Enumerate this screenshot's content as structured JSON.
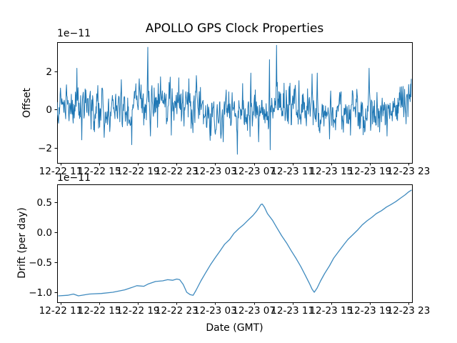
{
  "figure": {
    "title": "APOLLO GPS Clock Properties",
    "background": "#ffffff",
    "line_color": "#1f77b4",
    "axis_color": "#000000"
  },
  "chart_data": [
    {
      "type": "line",
      "name": "offset-vs-time",
      "title": "APOLLO GPS Clock Properties",
      "ylabel": "Offset",
      "y_offset_text": "1e−11",
      "y_unit_scale": "1e-11",
      "yticklabels": [
        "2",
        "0",
        "−2"
      ],
      "yticks": [
        2,
        0,
        -2
      ],
      "ylim": [
        -2.8,
        3.48
      ],
      "xticklabels": [
        "12-22 11",
        "12-22 15",
        "12-22 19",
        "12-22 23",
        "12-23 03",
        "12-23 07",
        "12-23 11",
        "12-23 15",
        "12-23 19",
        "12-23 23"
      ],
      "legend": null,
      "grid": false,
      "series_style": "dense noisy line centered on 0, band about ±0.8e-11",
      "noise": {
        "n": 950,
        "ar": 0.45,
        "sigma": 0.5,
        "seed": 1337,
        "wander": [
          [
            0.2,
            0.021,
            1.3
          ],
          [
            0.14,
            0.0065,
            0.5
          ]
        ]
      },
      "spikes": [
        [
          0.056,
          2.15
        ],
        [
          0.07,
          -1.6
        ],
        [
          0.115,
          1.25
        ],
        [
          0.181,
          1.55
        ],
        [
          0.211,
          -1.85
        ],
        [
          0.232,
          1.6
        ],
        [
          0.256,
          3.25
        ],
        [
          0.263,
          -1.4
        ],
        [
          0.292,
          1.7
        ],
        [
          0.322,
          -1.35
        ],
        [
          0.344,
          1.65
        ],
        [
          0.372,
          1.6
        ],
        [
          0.405,
          1.15
        ],
        [
          0.469,
          -1.7
        ],
        [
          0.509,
          -2.35
        ],
        [
          0.524,
          1.35
        ],
        [
          0.547,
          1.9
        ],
        [
          0.569,
          -1.7
        ],
        [
          0.6,
          2.6
        ],
        [
          0.62,
          3.35
        ],
        [
          0.683,
          1.5
        ],
        [
          0.72,
          1.85
        ],
        [
          0.734,
          1.9
        ],
        [
          0.769,
          -1.55
        ],
        [
          0.881,
          2.15
        ],
        [
          0.932,
          -1.4
        ],
        [
          0.993,
          1.3
        ]
      ]
    },
    {
      "type": "line",
      "name": "drift-vs-time",
      "ylabel": "Drift (per day)",
      "xlabel": "Date (GMT)",
      "y_offset_text": "1e−11",
      "y_unit_scale": "1e-11",
      "yticklabels": [
        "0.5",
        "0.0",
        "−0.5",
        "−1.0"
      ],
      "yticks": [
        0.5,
        0.0,
        -0.5,
        -1.0
      ],
      "ylim": [
        -1.17,
        0.8
      ],
      "xticklabels": [
        "12-22 11",
        "12-22 15",
        "12-22 19",
        "12-22 23",
        "12-23 03",
        "12-23 07",
        "12-23 11",
        "12-23 15",
        "12-23 19",
        "12-23 23"
      ],
      "legend": null,
      "grid": false,
      "points": [
        [
          0.004,
          -1.06
        ],
        [
          0.03,
          -1.05
        ],
        [
          0.046,
          -1.03
        ],
        [
          0.06,
          -1.06
        ],
        [
          0.091,
          -1.03
        ],
        [
          0.125,
          -1.02
        ],
        [
          0.157,
          -1.0
        ],
        [
          0.191,
          -0.96
        ],
        [
          0.211,
          -0.92
        ],
        [
          0.225,
          -0.89
        ],
        [
          0.245,
          -0.9
        ],
        [
          0.258,
          -0.86
        ],
        [
          0.278,
          -0.82
        ],
        [
          0.298,
          -0.81
        ],
        [
          0.312,
          -0.79
        ],
        [
          0.326,
          -0.8
        ],
        [
          0.338,
          -0.78
        ],
        [
          0.346,
          -0.79
        ],
        [
          0.356,
          -0.87
        ],
        [
          0.366,
          -1.0
        ],
        [
          0.376,
          -1.04
        ],
        [
          0.384,
          -1.05
        ],
        [
          0.392,
          -0.97
        ],
        [
          0.406,
          -0.81
        ],
        [
          0.419,
          -0.68
        ],
        [
          0.433,
          -0.54
        ],
        [
          0.447,
          -0.42
        ],
        [
          0.459,
          -0.32
        ],
        [
          0.473,
          -0.2
        ],
        [
          0.487,
          -0.12
        ],
        [
          0.499,
          -0.02
        ],
        [
          0.513,
          0.06
        ],
        [
          0.527,
          0.13
        ],
        [
          0.539,
          0.2
        ],
        [
          0.553,
          0.28
        ],
        [
          0.563,
          0.35
        ],
        [
          0.571,
          0.42
        ],
        [
          0.575,
          0.46
        ],
        [
          0.579,
          0.47
        ],
        [
          0.585,
          0.42
        ],
        [
          0.594,
          0.31
        ],
        [
          0.608,
          0.2
        ],
        [
          0.62,
          0.08
        ],
        [
          0.634,
          -0.06
        ],
        [
          0.648,
          -0.18
        ],
        [
          0.66,
          -0.3
        ],
        [
          0.674,
          -0.43
        ],
        [
          0.688,
          -0.57
        ],
        [
          0.7,
          -0.71
        ],
        [
          0.712,
          -0.85
        ],
        [
          0.72,
          -0.95
        ],
        [
          0.726,
          -1.0
        ],
        [
          0.734,
          -0.93
        ],
        [
          0.744,
          -0.81
        ],
        [
          0.755,
          -0.69
        ],
        [
          0.769,
          -0.56
        ],
        [
          0.781,
          -0.43
        ],
        [
          0.795,
          -0.32
        ],
        [
          0.809,
          -0.21
        ],
        [
          0.821,
          -0.12
        ],
        [
          0.835,
          -0.04
        ],
        [
          0.849,
          0.04
        ],
        [
          0.861,
          0.12
        ],
        [
          0.875,
          0.19
        ],
        [
          0.889,
          0.25
        ],
        [
          0.901,
          0.31
        ],
        [
          0.916,
          0.36
        ],
        [
          0.93,
          0.42
        ],
        [
          0.942,
          0.46
        ],
        [
          0.956,
          0.51
        ],
        [
          0.97,
          0.57
        ],
        [
          0.982,
          0.62
        ],
        [
          0.992,
          0.67
        ],
        [
          1.0,
          0.7
        ]
      ]
    }
  ]
}
